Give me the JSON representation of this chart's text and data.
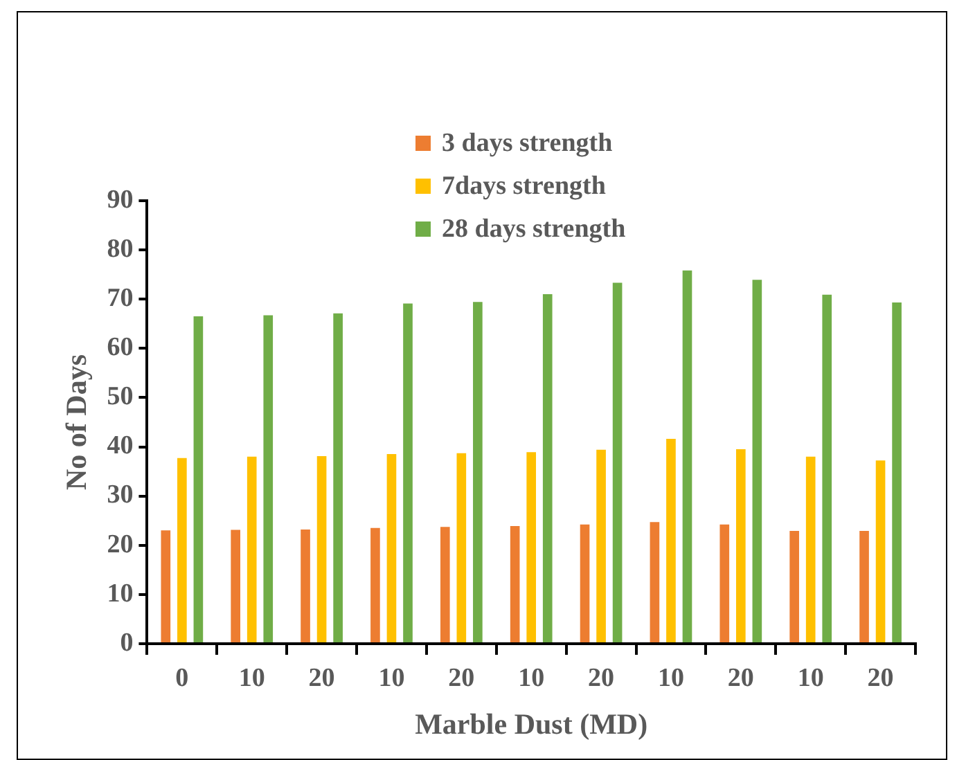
{
  "chart_data": {
    "type": "bar",
    "xlabel": "Marble Dust (MD)",
    "ylabel": "No of Days",
    "categories": [
      "0",
      "10",
      "20",
      "10",
      "20",
      "10",
      "20",
      "10",
      "20",
      "10",
      "20"
    ],
    "series": [
      {
        "name": "3 days strength",
        "color": "#ed7d31",
        "values": [
          23.3,
          23.4,
          23.5,
          23.8,
          24,
          24.2,
          24.5,
          25,
          24.5,
          23.2,
          23.2
        ]
      },
      {
        "name": "7days strength",
        "color": "#ffc000",
        "values": [
          38,
          38.3,
          38.4,
          38.8,
          39,
          39.2,
          39.7,
          41.9,
          39.8,
          38.3,
          37.5
        ]
      },
      {
        "name": "28 days strength",
        "color": "#70ad47",
        "values": [
          66.8,
          67,
          67.4,
          69.4,
          69.7,
          71.3,
          73.6,
          76.1,
          74.2,
          71.2,
          69.6
        ]
      }
    ],
    "ylim": [
      0,
      90
    ],
    "yticks": [
      0,
      10,
      20,
      30,
      40,
      50,
      60,
      70,
      80,
      90
    ],
    "grid": false,
    "legend": "top"
  }
}
